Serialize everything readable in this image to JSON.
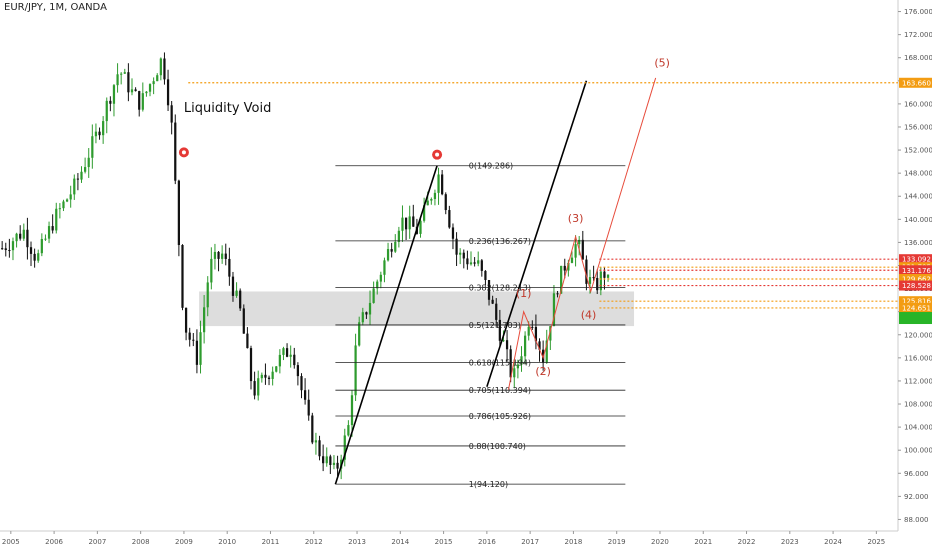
{
  "header": {
    "symbol": "EUR/JPY, 1M, OANDA"
  },
  "colors": {
    "up": "#2e9b2e",
    "down": "#111111",
    "fib": "#222222",
    "zone": "#d9d9d9",
    "wave": "#e74c3c",
    "orange": "#f39c12",
    "red": "#e53935",
    "green": "#28b428"
  },
  "chart_data": {
    "type": "candlestick",
    "symbol": "EUR/JPY",
    "timeframe": "1M",
    "source": "OANDA",
    "xlim": [
      2004.75,
      2025.5
    ],
    "ylim": [
      86,
      178
    ],
    "x_ticks": [
      "2005",
      "2006",
      "2007",
      "2008",
      "2009",
      "2010",
      "2011",
      "2012",
      "2013",
      "2014",
      "2015",
      "2016",
      "2017",
      "2018",
      "2019",
      "2020",
      "2021",
      "2022",
      "2023",
      "2024",
      "2025"
    ],
    "y_ticks": [
      "176.000",
      "172.000",
      "168.000",
      "164.000",
      "160.000",
      "156.000",
      "152.000",
      "148.000",
      "144.000",
      "140.000",
      "136.000",
      "132.000",
      "128.000",
      "124.000",
      "120.000",
      "116.000",
      "112.000",
      "108.000",
      "104.000",
      "100.000",
      "96.000",
      "92.000",
      "88.000"
    ],
    "price_path": [
      [
        2004.8,
        135
      ],
      [
        2005.3,
        138
      ],
      [
        2005.6,
        133
      ],
      [
        2006.0,
        140
      ],
      [
        2006.5,
        146
      ],
      [
        2007.0,
        155
      ],
      [
        2007.5,
        166
      ],
      [
        2007.8,
        162
      ],
      [
        2008.0,
        160
      ],
      [
        2008.5,
        168
      ],
      [
        2008.7,
        158
      ],
      [
        2008.85,
        140
      ],
      [
        2009.0,
        122
      ],
      [
        2009.3,
        116
      ],
      [
        2009.6,
        132
      ],
      [
        2009.9,
        134
      ],
      [
        2010.3,
        124
      ],
      [
        2010.6,
        110
      ],
      [
        2011.0,
        114
      ],
      [
        2011.5,
        118
      ],
      [
        2011.9,
        104
      ],
      [
        2012.1,
        100
      ],
      [
        2012.5,
        96
      ],
      [
        2012.8,
        104
      ],
      [
        2013.0,
        120
      ],
      [
        2013.5,
        130
      ],
      [
        2014.0,
        140
      ],
      [
        2014.4,
        138
      ],
      [
        2014.9,
        148
      ],
      [
        2015.3,
        134
      ],
      [
        2015.8,
        132
      ],
      [
        2016.0,
        128
      ],
      [
        2016.4,
        118
      ],
      [
        2016.6,
        112
      ],
      [
        2016.9,
        120
      ],
      [
        2017.0,
        124
      ],
      [
        2017.3,
        116
      ],
      [
        2017.6,
        128
      ],
      [
        2017.9,
        134
      ],
      [
        2018.1,
        136
      ],
      [
        2018.3,
        130
      ],
      [
        2018.5,
        128
      ],
      [
        2018.7,
        131
      ],
      [
        2018.8,
        129
      ]
    ],
    "fibonacci": [
      {
        "ratio": "0",
        "price": 149.286,
        "label": "0(149.286)"
      },
      {
        "ratio": "0.236",
        "price": 136.267,
        "label": "0.236(136.267)"
      },
      {
        "ratio": "0.382",
        "price": 128.213,
        "label": "0.382(128.213)"
      },
      {
        "ratio": "0.5",
        "price": 121.703,
        "label": "0.5(121.703)"
      },
      {
        "ratio": "0.618",
        "price": 115.194,
        "label": "0.618(115.194)"
      },
      {
        "ratio": "0.705",
        "price": 110.394,
        "label": "0.705(110.394)"
      },
      {
        "ratio": "0.786",
        "price": 105.926,
        "label": "0.786(105.926)"
      },
      {
        "ratio": "0.88",
        "price": 100.74,
        "label": "0.88(100.740)"
      },
      {
        "ratio": "1",
        "price": 94.12,
        "label": "1(94.120)"
      }
    ],
    "fib_x": [
      2012.5,
      2019.2
    ],
    "zone": {
      "x1": 2009.35,
      "x2": 2019.4,
      "y1": 121.5,
      "y2": 127.5
    },
    "trendlines": [
      {
        "points": [
          [
            2012.5,
            94.1
          ],
          [
            2014.85,
            149.3
          ]
        ],
        "color": "#000000"
      },
      {
        "points": [
          [
            2016.0,
            111.0
          ],
          [
            2018.3,
            164.0
          ]
        ],
        "color": "#000000"
      }
    ],
    "wave_path": [
      [
        2016.5,
        110.5
      ],
      [
        2016.85,
        124.0
      ],
      [
        2017.3,
        116.0
      ],
      [
        2018.05,
        137.0
      ],
      [
        2018.4,
        127.5
      ],
      [
        2019.9,
        164.5
      ]
    ],
    "wave_labels": [
      {
        "text": "(1)",
        "x": 2016.85,
        "y": 126.5
      },
      {
        "text": "(2)",
        "x": 2017.3,
        "y": 113.0
      },
      {
        "text": "(3)",
        "x": 2018.05,
        "y": 139.5
      },
      {
        "text": "(4)",
        "x": 2018.35,
        "y": 122.8
      },
      {
        "text": "(5)",
        "x": 2020.05,
        "y": 166.5
      }
    ],
    "annotation": {
      "text": "Liquidity Void",
      "x": 2009.0,
      "y": 158.6
    },
    "markers": [
      {
        "x": 2009.0,
        "y": 151.6
      },
      {
        "x": 2014.85,
        "y": 151.2
      }
    ],
    "price_levels": [
      {
        "price": 163.66,
        "label": "163.660",
        "color": "#f39c12",
        "x_start": 2009.1
      },
      {
        "price": 133.092,
        "label": "133.092",
        "color": "#e53935",
        "x_start": 2018.6
      },
      {
        "price": 131.705,
        "label": "131.705",
        "color": "#f39c12",
        "x_start": 2018.6
      },
      {
        "price": 131.176,
        "label": "131.176",
        "color": "#e53935",
        "x_start": 2018.6
      },
      {
        "price": 129.662,
        "label": "129.662",
        "color": "#f39c12",
        "x_start": 2018.6
      },
      {
        "price": 128.528,
        "label": "128.528",
        "color": "#e53935",
        "x_start": 2018.6
      },
      {
        "price": 125.816,
        "label": "125.816",
        "color": "#f39c12",
        "x_start": 2018.6
      },
      {
        "price": 124.651,
        "label": "124.651",
        "color": "#f39c12",
        "x_start": 2018.6
      }
    ],
    "current_price_tag": {
      "price": 122.9,
      "color": "#28b428"
    }
  }
}
